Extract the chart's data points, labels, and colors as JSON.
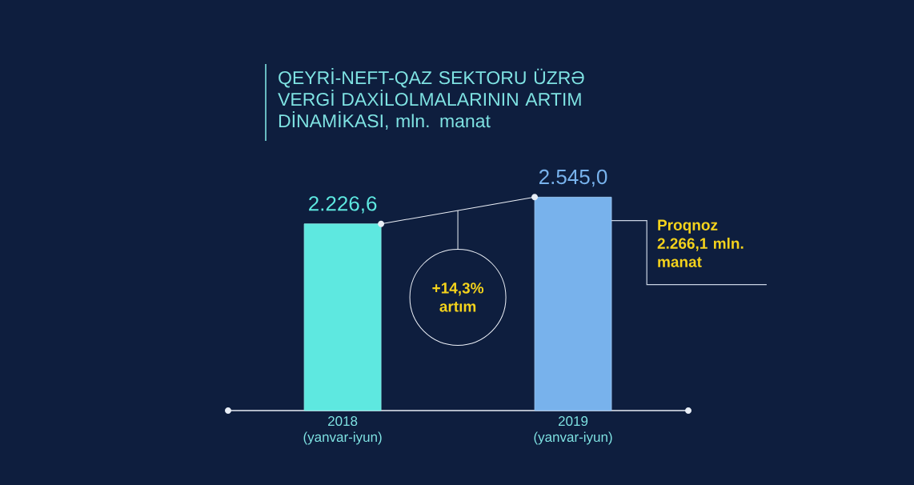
{
  "chart_data": {
    "type": "bar",
    "title": "QEYRİ-NEFT-QAZ SEKTORU ÜZRƏ VERGİ DAXİLOLMALARININ ARTIM DİNAMİKASI, mln. manat",
    "categories": [
      "2018 (yanvar-iyun)",
      "2019 (yanvar-iyun)"
    ],
    "values": [
      2226.6,
      2545
    ],
    "colors": [
      "#5ee8e0",
      "#78b2ec"
    ],
    "value_labels": [
      "2.226,6",
      "2.545,0"
    ],
    "ref_lines": [
      {
        "axis": "y",
        "value": 2266.1,
        "label": "Proqnoz 2.266,1 mln. manat",
        "color": "#c9d3e3"
      }
    ],
    "annotations": [
      "+14,3% artım"
    ]
  }
}
